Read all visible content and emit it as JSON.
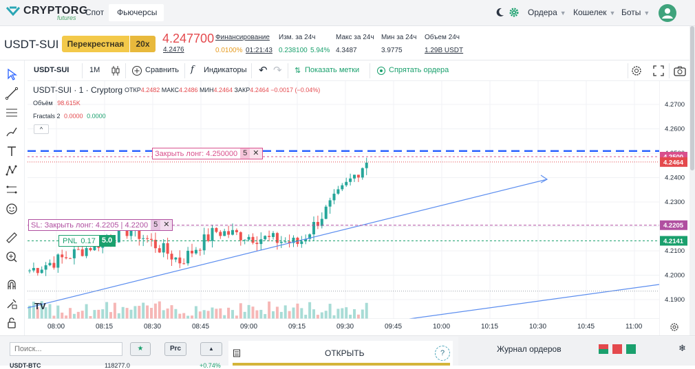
{
  "nav": {
    "brand": "CRYPTORG",
    "brand_sub": "futures",
    "tabs": [
      "Спот",
      "Фьючерсы"
    ],
    "right": [
      "Ордера",
      "Кошелек",
      "Боты"
    ]
  },
  "ticker": {
    "pair": "USDT-SUI",
    "mode": "Перекрестная",
    "leverage": "20x",
    "price": "4.247700",
    "price_sub": "4.2476",
    "funding_label": "Финансирование",
    "funding_rate": "0.0100%",
    "funding_timer": "01:21:43",
    "change_label": "Изм. за 24ч",
    "change_value": "0.238100",
    "change_pct": "5.94%",
    "high_label": "Макс за 24ч",
    "high_value": "4.3487",
    "low_label": "Мин за 24ч",
    "low_value": "3.9775",
    "volume_label": "Объем 24ч",
    "volume_value": "1.29B USDT"
  },
  "toolbar": {
    "symbol": "USDT-SUI",
    "interval": "1M",
    "compare": "Сравнить",
    "indicators": "Индикаторы",
    "show_marks": "Показать метки",
    "hide_orders": "Спрятать ордера"
  },
  "legend": {
    "title": "USDT-SUI · 1 · Cryptorg",
    "open_label": "ОТКР",
    "open": "4.2482",
    "high_label": "МАКС",
    "high": "4.2486",
    "low_label": "МИН",
    "low": "4.2464",
    "close_label": "ЗАКР",
    "close": "4.2464",
    "change": "−0.0017 (−0.04%)",
    "volume_label": "Объём",
    "volume": "98.615K",
    "fractals_label": "Fractals 2",
    "fractals_a": "0.0000",
    "fractals_b": "0.0000"
  },
  "orders": {
    "close_long": "Закрыть лонг: 4.250000",
    "close_long_qty": "5",
    "sl": "SL: Закрыть лонг: 4.2205 | 4.2200",
    "sl_qty": "5",
    "pnl_label": "PNL",
    "pnl_value": "0.17",
    "pnl_qty": "5.0"
  },
  "chart_data": {
    "type": "candlestick",
    "y_ticks": [
      "4.2700",
      "4.2600",
      "4.2500",
      "4.2400",
      "4.2300",
      "4.2200",
      "4.2100",
      "4.2000",
      "4.1900"
    ],
    "y_tick_values": [
      4.27,
      4.26,
      4.25,
      4.24,
      4.23,
      4.22,
      4.21,
      4.2,
      4.19
    ],
    "x_ticks": [
      "08:00",
      "08:15",
      "08:30",
      "08:45",
      "09:00",
      "09:15",
      "09:30",
      "09:45",
      "10:00",
      "10:15",
      "10:30",
      "10:45",
      "11:00"
    ],
    "price_markers": [
      {
        "label": "4.2500",
        "value": 4.25,
        "color": "#d9508c"
      },
      {
        "label": "4.2464",
        "value": 4.2464,
        "color": "#e4494d"
      },
      {
        "label": "4.2205",
        "value": 4.2205,
        "color": "#b04fa0"
      },
      {
        "label": "4.2141",
        "value": 4.2141,
        "color": "#1aa06d"
      }
    ]
  },
  "bottom": {
    "search_placeholder": "Поиск...",
    "star": "★",
    "prc": "Prc",
    "open_label": "ОТКРЫТЬ",
    "help": "?",
    "journal": "Журнал ордеров",
    "row_pair": "USDT-BTC",
    "row_price": "118277.0",
    "row_change": "+0.74%"
  }
}
